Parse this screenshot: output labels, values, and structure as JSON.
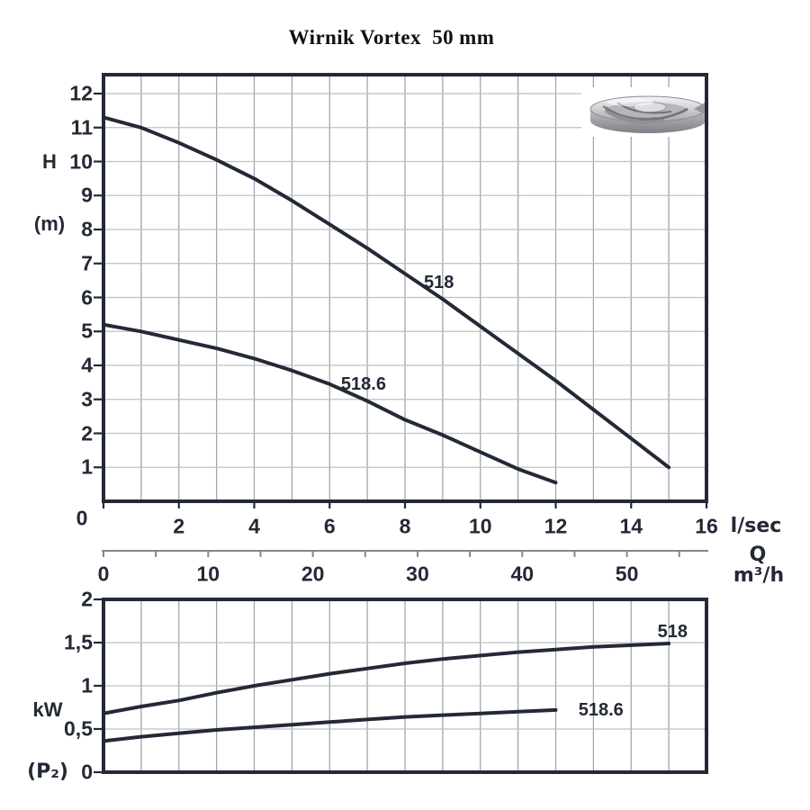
{
  "title": "Wirnik Vortex  50 mm",
  "colors": {
    "ink": "#232936",
    "grid_vertical": "#9aa1a8",
    "grid_horizontal": "#bdc1c5",
    "ruler": "#81878e",
    "title_text": "#111111"
  },
  "impeller_icon": "vortex-impeller-photo",
  "chart_data": [
    {
      "id": "head-curve-chart",
      "type": "line",
      "xlabel": "Q",
      "ylabel": "H (m)",
      "xlim": [
        0,
        16
      ],
      "ylim": [
        0,
        12.56
      ],
      "grid": true,
      "y_axis": {
        "name": "H",
        "unit": "(m)",
        "tick_values": [
          1,
          2,
          3,
          4,
          5,
          6,
          7,
          8,
          9,
          10,
          11,
          12
        ]
      },
      "x_axis": {
        "unit": "l/sec",
        "origin_label": "0",
        "tick_values": [
          2,
          4,
          6,
          8,
          10,
          12,
          14,
          16
        ]
      },
      "secondary_x_axis": {
        "name": "Q",
        "unit": "m³/h",
        "tick_labels": [
          0,
          10,
          20,
          30,
          40,
          50
        ],
        "minor_tick_step": 5,
        "minor_tick_max": 55,
        "l_per_sec_to_m3_per_h": 3.6
      },
      "series": [
        {
          "name": "518",
          "label": "518",
          "label_at": [
            8.9,
            6.45
          ],
          "points": [
            [
              0,
              11.3
            ],
            [
              1,
              11.0
            ],
            [
              2,
              10.55
            ],
            [
              3,
              10.05
            ],
            [
              4,
              9.5
            ],
            [
              5,
              8.85
            ],
            [
              6,
              8.15
            ],
            [
              7,
              7.45
            ],
            [
              8,
              6.7
            ],
            [
              9,
              5.95
            ],
            [
              10,
              5.15
            ],
            [
              11,
              4.35
            ],
            [
              12,
              3.55
            ],
            [
              13,
              2.7
            ],
            [
              14,
              1.85
            ],
            [
              15,
              1.0
            ]
          ]
        },
        {
          "name": "518.6",
          "label": "518.6",
          "label_at": [
            6.9,
            3.45
          ],
          "points": [
            [
              0,
              5.2
            ],
            [
              1,
              5.0
            ],
            [
              2,
              4.75
            ],
            [
              3,
              4.5
            ],
            [
              4,
              4.2
            ],
            [
              5,
              3.85
            ],
            [
              6,
              3.45
            ],
            [
              7,
              2.95
            ],
            [
              8,
              2.4
            ],
            [
              9,
              1.95
            ],
            [
              10,
              1.45
            ],
            [
              11,
              0.95
            ],
            [
              12,
              0.55
            ]
          ]
        }
      ]
    },
    {
      "id": "power-curve-chart",
      "type": "line",
      "xlabel": "Q",
      "ylabel": "kW (P₂)",
      "xlim": [
        0,
        16
      ],
      "ylim": [
        0,
        2
      ],
      "grid": true,
      "y_axis": {
        "name": "kW",
        "unit": "(P₂)",
        "ticks": [
          {
            "label": "2",
            "value": 2
          },
          {
            "label": "1,5",
            "value": 1.5
          },
          {
            "label": "1",
            "value": 1
          },
          {
            "label": "0,5",
            "value": 0.5
          },
          {
            "label": "0",
            "value": 0
          }
        ]
      },
      "series": [
        {
          "name": "518",
          "label": "518",
          "label_at": [
            15.1,
            1.63
          ],
          "points": [
            [
              0,
              0.68
            ],
            [
              1,
              0.76
            ],
            [
              2,
              0.83
            ],
            [
              3,
              0.92
            ],
            [
              4,
              1.0
            ],
            [
              5,
              1.07
            ],
            [
              6,
              1.14
            ],
            [
              7,
              1.2
            ],
            [
              8,
              1.26
            ],
            [
              9,
              1.31
            ],
            [
              10,
              1.35
            ],
            [
              11,
              1.39
            ],
            [
              12,
              1.42
            ],
            [
              13,
              1.45
            ],
            [
              14,
              1.47
            ],
            [
              15,
              1.49
            ]
          ]
        },
        {
          "name": "518.6",
          "label": "518.6",
          "label_at": [
            13.2,
            0.72
          ],
          "points": [
            [
              0,
              0.36
            ],
            [
              1,
              0.41
            ],
            [
              2,
              0.45
            ],
            [
              3,
              0.49
            ],
            [
              4,
              0.52
            ],
            [
              5,
              0.55
            ],
            [
              6,
              0.58
            ],
            [
              7,
              0.61
            ],
            [
              8,
              0.64
            ],
            [
              9,
              0.66
            ],
            [
              10,
              0.68
            ],
            [
              11,
              0.7
            ],
            [
              12,
              0.72
            ]
          ]
        }
      ]
    }
  ]
}
